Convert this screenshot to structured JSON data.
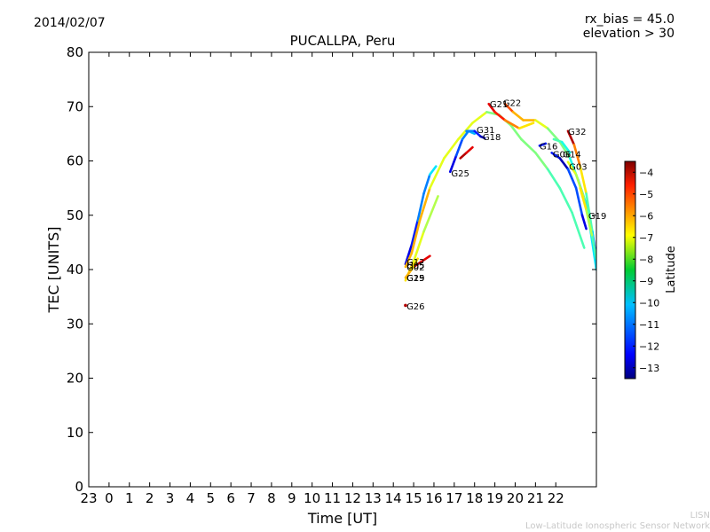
{
  "header": {
    "date": "2014/02/07",
    "rx_bias": "rx_bias = 45.0",
    "elevation": "elevation > 30"
  },
  "footer": {
    "line1": "LISN",
    "line2": "Low-Latitude Ionospheric Sensor Network"
  },
  "chart_data": {
    "type": "scatter",
    "title": "PUCALLPA, Peru",
    "xlabel": "Time [UT]",
    "ylabel": "TEC [UNITS]",
    "ylim": [
      0,
      80
    ],
    "yticks": [
      0,
      10,
      20,
      30,
      40,
      50,
      60,
      70,
      80
    ],
    "xlim": [
      -1,
      24
    ],
    "xticks": [
      -1,
      0,
      1,
      2,
      3,
      4,
      5,
      6,
      7,
      8,
      9,
      10,
      11,
      12,
      13,
      14,
      15,
      16,
      17,
      18,
      19,
      20,
      21,
      22
    ],
    "xtick_labels": [
      "23",
      "0",
      "1",
      "2",
      "3",
      "4",
      "5",
      "6",
      "7",
      "8",
      "9",
      "10",
      "11",
      "12",
      "13",
      "14",
      "15",
      "16",
      "17",
      "18",
      "19",
      "20",
      "21",
      "22"
    ],
    "colorbar": {
      "label": "Latitude",
      "range": [
        -13.5,
        -3.5
      ],
      "ticks": [
        -4,
        -5,
        -6,
        -7,
        -8,
        -9,
        -10,
        -11,
        -12,
        -13
      ],
      "tick_labels": [
        "−4",
        "−5",
        "−6",
        "−7",
        "−8",
        "−9",
        "−10",
        "−11",
        "−12",
        "−13"
      ]
    },
    "series": [
      {
        "name": "G12",
        "label_at": [
          14.65,
          41.5
        ],
        "lat": [
          -12.5,
          -12.0,
          -11.0,
          -10.0
        ],
        "points": [
          [
            14.6,
            41.0
          ],
          [
            14.9,
            44.5
          ],
          [
            15.2,
            49.0
          ],
          [
            15.5,
            54.0
          ],
          [
            15.8,
            57.5
          ],
          [
            16.1,
            59.0
          ]
        ]
      },
      {
        "name": "G02",
        "label_at": [
          14.65,
          40.5
        ],
        "lat": [
          -6.5,
          -7.5,
          -8.5,
          -9.0
        ],
        "points": [
          [
            14.6,
            40.5
          ],
          [
            14.9,
            43.0
          ],
          [
            15.3,
            49.0
          ],
          [
            15.8,
            55.0
          ],
          [
            16.5,
            60.5
          ],
          [
            17.2,
            64.0
          ],
          [
            17.9,
            67.0
          ],
          [
            18.6,
            69.0
          ],
          [
            19.2,
            68.5
          ],
          [
            19.8,
            66.5
          ],
          [
            20.3,
            64.0
          ],
          [
            21.0,
            61.5
          ],
          [
            21.6,
            58.5
          ],
          [
            22.2,
            55.0
          ],
          [
            22.8,
            50.5
          ],
          [
            23.4,
            44.0
          ]
        ]
      },
      {
        "name": "G05",
        "label_at": [
          14.65,
          40.8
        ],
        "lat": [
          -4.0,
          -4.5
        ],
        "points": [
          [
            15.0,
            40.5
          ],
          [
            15.4,
            41.5
          ],
          [
            15.8,
            42.5
          ]
        ]
      },
      {
        "name": "G29",
        "label_at": [
          14.65,
          38.5
        ],
        "lat": [
          -7.0,
          -7.5,
          -8.0
        ],
        "points": [
          [
            14.6,
            38.0
          ],
          [
            15.0,
            41.5
          ],
          [
            15.5,
            47.0
          ],
          [
            16.2,
            53.5
          ]
        ]
      },
      {
        "name": "G15",
        "label_at": [
          14.65,
          38.5
        ],
        "lat": [
          -6.5,
          -7.0
        ],
        "points": [
          [
            14.6,
            38.5
          ],
          [
            14.9,
            40.0
          ],
          [
            15.2,
            42.0
          ]
        ]
      },
      {
        "name": "G26",
        "label_at": [
          14.65,
          33.3
        ],
        "lat": [
          -4.0
        ],
        "points": [
          [
            14.6,
            33.4
          ]
        ]
      },
      {
        "name": "G25",
        "label_at": [
          16.85,
          57.8
        ],
        "lat": [
          -12.5,
          -11.5,
          -11.0,
          -10.5
        ],
        "points": [
          [
            16.8,
            58.0
          ],
          [
            17.1,
            61.0
          ],
          [
            17.4,
            64.0
          ],
          [
            17.7,
            65.5
          ],
          [
            18.0,
            65.0
          ]
        ]
      },
      {
        "name": "G31",
        "label_at": [
          18.1,
          65.8
        ],
        "lat": [
          -4.0,
          -4.5
        ],
        "points": [
          [
            17.3,
            60.5
          ],
          [
            17.6,
            61.5
          ],
          [
            17.9,
            62.5
          ]
        ]
      },
      {
        "name": "G18",
        "label_at": [
          18.4,
          64.5
        ],
        "lat": [
          -11.0,
          -12.0,
          -13.0
        ],
        "points": [
          [
            17.6,
            65.5
          ],
          [
            18.0,
            65.5
          ],
          [
            18.3,
            64.5
          ],
          [
            18.5,
            64.2
          ]
        ]
      },
      {
        "name": "G21",
        "label_at": [
          18.75,
          70.5
        ],
        "lat": [
          -4.5,
          -5.0,
          -6.0,
          -7.0
        ],
        "points": [
          [
            18.7,
            70.5
          ],
          [
            19.0,
            69.0
          ],
          [
            19.5,
            67.5
          ],
          [
            20.2,
            66.0
          ],
          [
            20.9,
            67.0
          ]
        ]
      },
      {
        "name": "G22",
        "label_at": [
          19.4,
          70.8
        ],
        "lat": [
          -5.5,
          -6.5,
          -7.5,
          -8.5,
          -9.5,
          -10.5,
          -11.5
        ],
        "points": [
          [
            19.5,
            70.5
          ],
          [
            19.9,
            69.0
          ],
          [
            20.4,
            67.5
          ],
          [
            21.0,
            67.5
          ],
          [
            21.6,
            66.0
          ],
          [
            22.2,
            63.5
          ],
          [
            22.7,
            60.5
          ],
          [
            23.1,
            56.5
          ],
          [
            23.5,
            52.0
          ],
          [
            23.8,
            47.0
          ],
          [
            24.0,
            42.0
          ]
        ]
      },
      {
        "name": "G16",
        "label_at": [
          21.2,
          62.8
        ],
        "lat": [
          -12.0,
          -13.0
        ],
        "points": [
          [
            21.2,
            62.8
          ],
          [
            21.5,
            63.2
          ]
        ]
      },
      {
        "name": "G06",
        "label_at": [
          21.85,
          61.3
        ],
        "lat": [
          -12.0,
          -13.0,
          -11.5,
          -12.5
        ],
        "points": [
          [
            21.8,
            61.5
          ],
          [
            22.2,
            60.5
          ],
          [
            22.6,
            58.5
          ],
          [
            23.0,
            55.0
          ],
          [
            23.3,
            50.0
          ],
          [
            23.5,
            47.5
          ]
        ]
      },
      {
        "name": "G14",
        "label_at": [
          22.35,
          61.3
        ],
        "lat": [
          -9.0,
          -9.5
        ],
        "points": [
          [
            21.9,
            64.0
          ],
          [
            22.3,
            63.5
          ],
          [
            22.7,
            61.5
          ]
        ]
      },
      {
        "name": "G32",
        "label_at": [
          22.6,
          65.5
        ],
        "lat": [
          -4.0,
          -5.0,
          -6.0,
          -7.0,
          -8.0,
          -9.0,
          -10.0
        ],
        "points": [
          [
            22.6,
            65.5
          ],
          [
            22.9,
            63.0
          ],
          [
            23.2,
            59.0
          ],
          [
            23.5,
            54.0
          ],
          [
            23.8,
            47.0
          ],
          [
            24.0,
            40.0
          ]
        ]
      },
      {
        "name": "G03",
        "label_at": [
          22.65,
          59.0
        ],
        "lat": [
          -7.5,
          -8.0,
          -9.0,
          -10.0
        ],
        "points": [
          [
            22.6,
            59.8
          ],
          [
            23.0,
            57.5
          ],
          [
            23.4,
            53.0
          ],
          [
            23.7,
            47.5
          ],
          [
            24.0,
            40.0
          ]
        ]
      },
      {
        "name": "G19",
        "label_at": [
          23.6,
          50.0
        ],
        "lat": [
          -7.0,
          -8.0,
          -9.0
        ],
        "points": [
          [
            23.2,
            55.0
          ],
          [
            23.5,
            51.0
          ],
          [
            23.8,
            46.0
          ],
          [
            24.0,
            42.0
          ]
        ]
      }
    ]
  }
}
